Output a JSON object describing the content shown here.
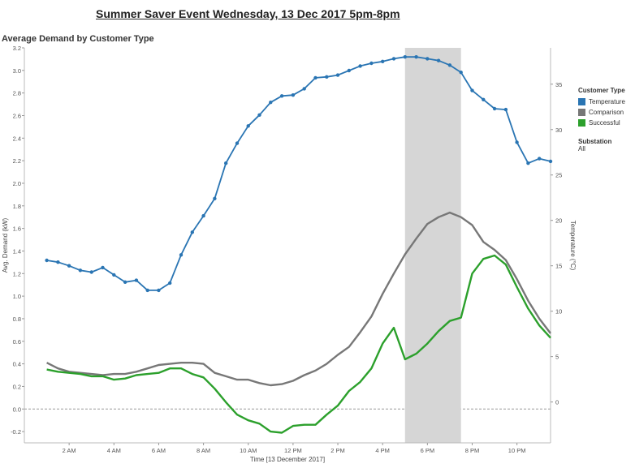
{
  "page": {
    "title": "Summer Saver Event  Wednesday, 13 Dec 2017 5pm-8pm",
    "subtitle": "Average Demand by Customer Type"
  },
  "legend": {
    "title": "Customer Type",
    "items": [
      {
        "label": "Temperature",
        "color": "#2a75b3"
      },
      {
        "label": "Comparison",
        "color": "#777777"
      },
      {
        "label": "Successful",
        "color": "#2ca02c"
      }
    ]
  },
  "filter": {
    "title": "Substation",
    "value": "All"
  },
  "chart_data": {
    "type": "line",
    "xlabel": "Time [13 December 2017]",
    "ylabel": "Avg. Demand (kW)",
    "y2label": "Temperature (°C)",
    "ylim": [
      -0.3,
      3.2
    ],
    "y2lim": [
      -4.5,
      39
    ],
    "xlim": [
      0,
      23.5
    ],
    "yticks": [
      "-0.2",
      "0.0",
      "0.2",
      "0.4",
      "0.6",
      "0.8",
      "1.0",
      "1.2",
      "1.4",
      "1.6",
      "1.8",
      "2.0",
      "2.2",
      "2.4",
      "2.6",
      "2.8",
      "3.0",
      "3.2"
    ],
    "y2ticks": [
      "0",
      "5",
      "10",
      "15",
      "20",
      "25",
      "30",
      "35"
    ],
    "xticks": [
      {
        "h": 2,
        "label": "2 AM"
      },
      {
        "h": 4,
        "label": "4 AM"
      },
      {
        "h": 6,
        "label": "6 AM"
      },
      {
        "h": 8,
        "label": "8 AM"
      },
      {
        "h": 10,
        "label": "10 AM"
      },
      {
        "h": 12,
        "label": "12 PM"
      },
      {
        "h": 14,
        "label": "2 PM"
      },
      {
        "h": 16,
        "label": "4 PM"
      },
      {
        "h": 18,
        "label": "6 PM"
      },
      {
        "h": 20,
        "label": "8 PM"
      },
      {
        "h": 22,
        "label": "10 PM"
      }
    ],
    "event_window": {
      "start": 17,
      "end": 19.5
    },
    "series": [
      {
        "name": "Temperature",
        "axis": "right",
        "color": "#2a75b3",
        "markers": true,
        "x": [
          1,
          1.5,
          2,
          2.5,
          3,
          3.5,
          4,
          4.5,
          5,
          5.5,
          6,
          6.5,
          7,
          7.5,
          8,
          8.5,
          9,
          9.5,
          10,
          10.5,
          11,
          11.5,
          12,
          12.5,
          13,
          13.5,
          14,
          14.5,
          15,
          15.5,
          16,
          16.5,
          17,
          17.5,
          18,
          18.5,
          19,
          19.5,
          20,
          20.5,
          21,
          21.5,
          22,
          22.5,
          23,
          23.5
        ],
        "values": [
          15.6,
          15.4,
          15.0,
          14.5,
          14.3,
          14.8,
          14.0,
          13.2,
          13.4,
          12.3,
          12.3,
          13.1,
          16.2,
          18.7,
          20.5,
          22.4,
          26.3,
          28.5,
          30.4,
          31.6,
          33.0,
          33.7,
          33.8,
          34.5,
          35.7,
          35.8,
          36.0,
          36.5,
          37.0,
          37.3,
          37.5,
          37.8,
          38.0,
          38.0,
          37.8,
          37.6,
          37.1,
          36.3,
          34.3,
          33.3,
          32.3,
          32.2,
          28.6,
          26.3,
          26.8,
          26.5
        ]
      },
      {
        "name": "Comparison",
        "axis": "left",
        "color": "#777777",
        "markers": false,
        "x": [
          1,
          1.5,
          2,
          2.5,
          3,
          3.5,
          4,
          4.5,
          5,
          5.5,
          6,
          6.5,
          7,
          7.5,
          8,
          8.5,
          9,
          9.5,
          10,
          10.5,
          11,
          11.5,
          12,
          12.5,
          13,
          13.5,
          14,
          14.5,
          15,
          15.5,
          16,
          16.5,
          17,
          17.5,
          18,
          18.5,
          19,
          19.5,
          20,
          20.5,
          21,
          21.5,
          22,
          22.5,
          23,
          23.5
        ],
        "values": [
          0.41,
          0.36,
          0.33,
          0.32,
          0.31,
          0.3,
          0.31,
          0.31,
          0.33,
          0.36,
          0.39,
          0.4,
          0.41,
          0.41,
          0.4,
          0.32,
          0.29,
          0.26,
          0.26,
          0.23,
          0.21,
          0.22,
          0.25,
          0.3,
          0.34,
          0.4,
          0.48,
          0.55,
          0.68,
          0.82,
          1.02,
          1.2,
          1.37,
          1.51,
          1.64,
          1.7,
          1.74,
          1.7,
          1.63,
          1.48,
          1.41,
          1.32,
          1.15,
          0.96,
          0.8,
          0.67
        ]
      },
      {
        "name": "Successful",
        "axis": "left",
        "color": "#2ca02c",
        "markers": false,
        "x": [
          1,
          1.5,
          2,
          2.5,
          3,
          3.5,
          4,
          4.5,
          5,
          5.5,
          6,
          6.5,
          7,
          7.5,
          8,
          8.5,
          9,
          9.5,
          10,
          10.5,
          11,
          11.5,
          12,
          12.5,
          13,
          13.5,
          14,
          14.5,
          15,
          15.5,
          16,
          16.5,
          17,
          17.5,
          18,
          18.5,
          19,
          19.5,
          20,
          20.5,
          21,
          21.5,
          22,
          22.5,
          23,
          23.5
        ],
        "values": [
          0.35,
          0.33,
          0.32,
          0.31,
          0.29,
          0.29,
          0.26,
          0.27,
          0.3,
          0.31,
          0.32,
          0.36,
          0.36,
          0.31,
          0.28,
          0.18,
          0.06,
          -0.05,
          -0.1,
          -0.13,
          -0.2,
          -0.21,
          -0.15,
          -0.14,
          -0.14,
          -0.05,
          0.03,
          0.16,
          0.24,
          0.36,
          0.58,
          0.72,
          0.44,
          0.49,
          0.58,
          0.69,
          0.78,
          0.81,
          1.2,
          1.33,
          1.36,
          1.28,
          1.08,
          0.89,
          0.74,
          0.63
        ]
      }
    ]
  }
}
